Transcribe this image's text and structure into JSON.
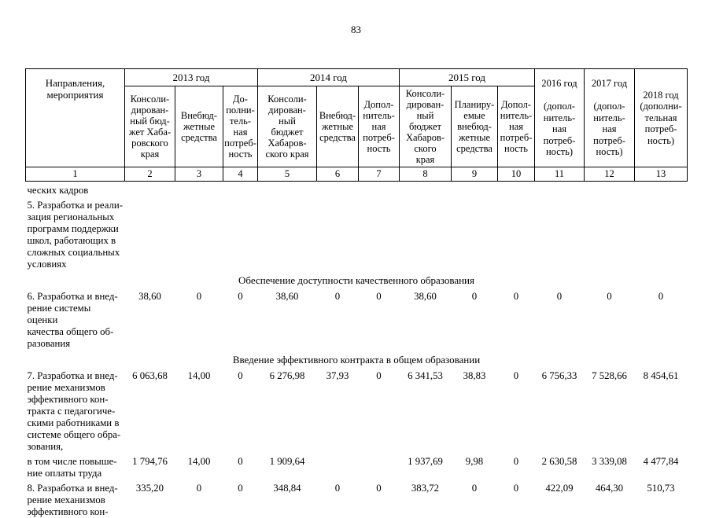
{
  "page": {
    "number": "83"
  },
  "table": {
    "header": {
      "directions": "Направления,\nмероприятия",
      "groups": [
        {
          "year": "2013 год",
          "subs": [
            "Консоли-\nдирован-\nный бюд-\nжет Хаба-\nровского\nкрая",
            "Внебюд-\nжетные\nсредства",
            "До-\nполни-\nтель-\nная\nпотреб-\nность"
          ]
        },
        {
          "year": "2014 год",
          "subs": [
            "Консоли-\nдирован-\nный\nбюджет\nХабаров-\nского края",
            "Внебюд-\nжетные\nсредства",
            "Допол-\nнитель-\nная\nпотреб-\nность"
          ]
        },
        {
          "year": "2015 год",
          "subs": [
            "Консоли-\nдирован-\nный\nбюджет\nХабаров-\nского\nкрая",
            "Планиру-\nемые\nвнебюд-\nжетные\nсредства",
            "Допол-\nнитель-\nная\nпотреб-\nность"
          ]
        }
      ],
      "tail": [
        "2016 год\n\n(допол-\nнитель-\nная\nпотреб-\nность)",
        "2017 год\n\n(допол-\nнитель-\nная\nпотреб-\nность)",
        "2018 год\n(дополни-\nтельная\nпотреб-\nность)"
      ],
      "numbers": [
        "1",
        "2",
        "3",
        "4",
        "5",
        "6",
        "7",
        "8",
        "9",
        "10",
        "11",
        "12",
        "13"
      ]
    },
    "rows": [
      {
        "type": "text",
        "label": "ческих кадров"
      },
      {
        "type": "text",
        "label": "5. Разработка и реали-\nзация региональных\nпрограмм поддержки\nшкол, работающих в\nсложных социальных\nусловиях"
      },
      {
        "type": "section",
        "text": "Обеспечение доступности качественного образования"
      },
      {
        "type": "data",
        "label": "6. Разработка и внед-\nрение системы оценки\nкачества общего об-\nразования",
        "values": [
          "38,60",
          "0",
          "0",
          "38,60",
          "0",
          "0",
          "38,60",
          "0",
          "0",
          "0",
          "0",
          "0"
        ]
      },
      {
        "type": "section",
        "text": "Введение эффективного контракта в общем образовании"
      },
      {
        "type": "data",
        "label": "7. Разработка и внед-\nрение механизмов\nэффективного кон-\nтракта с педагогиче-\nскими работниками в\nсистеме общего обра-\nзования,",
        "values": [
          "6 063,68",
          "14,00",
          "0",
          "6 276,98",
          "37,93",
          "0",
          "6 341,53",
          "38,83",
          "0",
          "6 756,33",
          "7 528,66",
          "8 454,61"
        ]
      },
      {
        "type": "data",
        "label": "в том числе повыше-\nние оплаты труда",
        "values": [
          "1 794,76",
          "14,00",
          "0",
          "1 909,64",
          "",
          "",
          "1 937,69",
          "9,98",
          "0",
          "2 630,58",
          "3 339,08",
          "4 477,84"
        ]
      },
      {
        "type": "data",
        "label": "8. Разработка и внед-\nрение механизмов\nэффективного кон-",
        "values": [
          "335,20",
          "0",
          "0",
          "348,84",
          "0",
          "0",
          "383,72",
          "0",
          "0",
          "422,09",
          "464,30",
          "510,73"
        ]
      }
    ]
  }
}
